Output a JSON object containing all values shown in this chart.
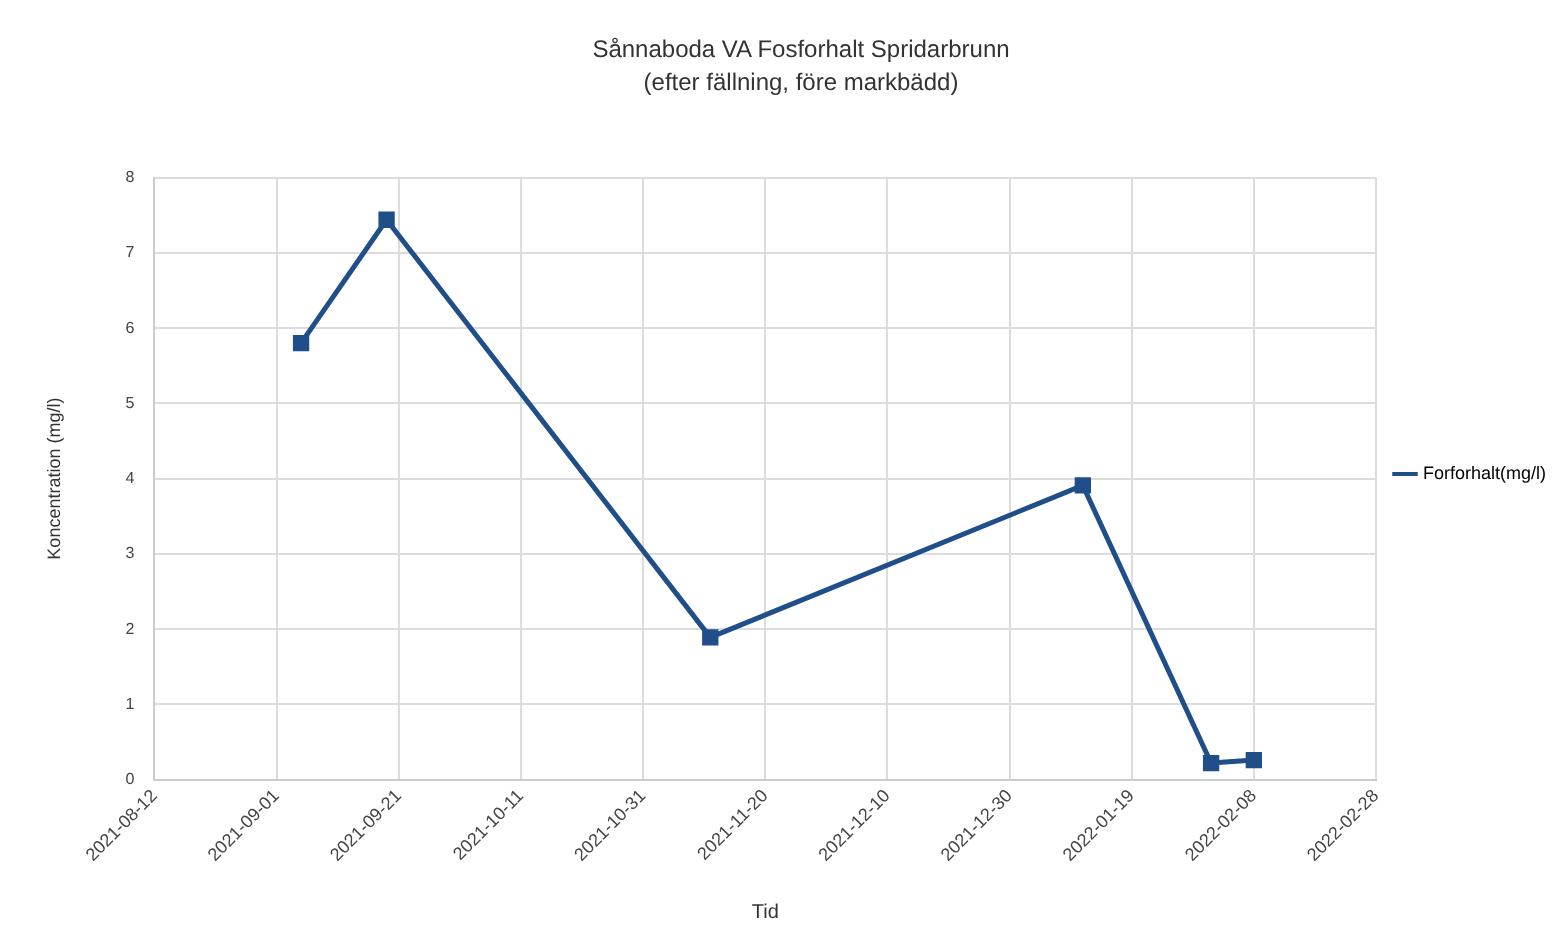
{
  "chart_data": {
    "type": "line",
    "title": "Sånnaboda VA Fosforhalt Spridarbrunn",
    "subtitle": "(efter fällning, före markbädd)",
    "xlabel": "Tid",
    "ylabel": "Koncentration (mg/l)",
    "x": [
      "2021-09-05",
      "2021-09-19",
      "2021-11-11",
      "2022-01-11",
      "2022-02-01",
      "2022-02-08"
    ],
    "series": [
      {
        "name": "Forforhalt(mg/l)",
        "color": "#1f4e89",
        "values": [
          5.8,
          7.44,
          1.89,
          3.91,
          0.22,
          0.26
        ]
      }
    ],
    "xlim": [
      "2021-08-12",
      "2022-02-28"
    ],
    "xticks": [
      "2021-08-12",
      "2021-09-01",
      "2021-09-21",
      "2021-10-11",
      "2021-10-31",
      "2021-11-20",
      "2021-12-10",
      "2021-12-30",
      "2022-01-19",
      "2022-02-08",
      "2022-02-28"
    ],
    "ylim": [
      0,
      8
    ],
    "yticks": [
      0,
      1,
      2,
      3,
      4,
      5,
      6,
      7,
      8
    ],
    "grid": true,
    "legend": "right",
    "marker": "square",
    "line_style": "solid"
  }
}
